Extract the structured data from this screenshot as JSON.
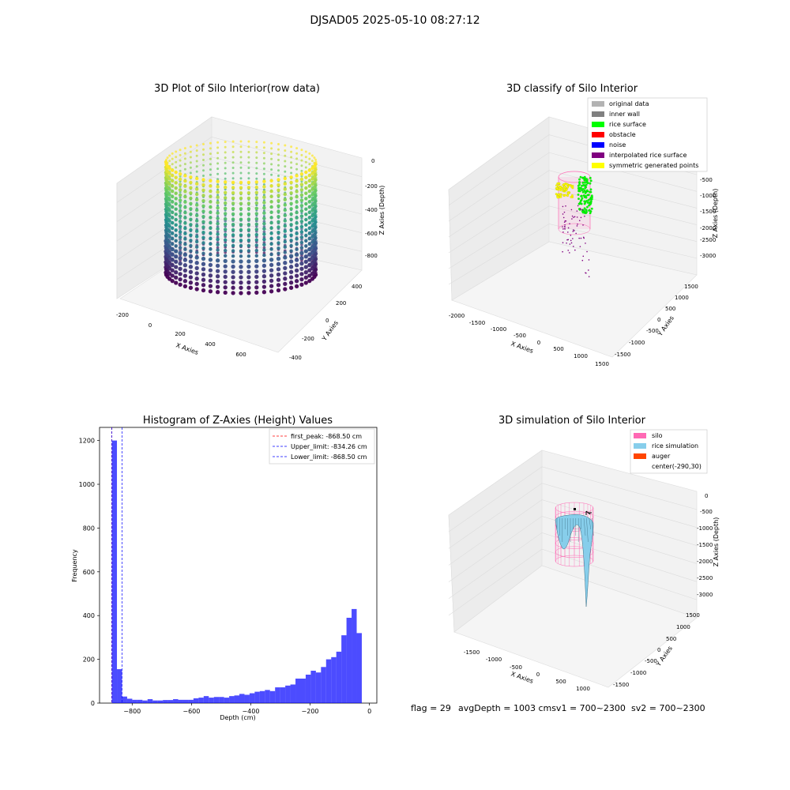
{
  "figure": {
    "suptitle": "DJSAD05 2025-05-10 08:27:12",
    "footer": {
      "flag": "flag = 29",
      "avg": "avgDepth = 1003 cmsv1 = 700~2300",
      "sv2": "sv2 = 700~2300"
    }
  },
  "colors": {
    "original": "#b3b3b3",
    "inner_wall": "#808080",
    "rice_surface": "#00ff00",
    "obstacle": "#ff0000",
    "noise": "#0000ff",
    "interpolated": "#800080",
    "symmetric": "#ffff00",
    "silo": "#ff69b4",
    "rice_sim": "#87ceeb",
    "auger": "#ff4500",
    "hist_bar": "#0000ff"
  },
  "chart_data": [
    {
      "id": "raw",
      "type": "scatter3d",
      "title": "3D Plot of Silo Interior(row data)",
      "xlabel": "X Axies",
      "ylabel": "Y Axies",
      "zlabel": "Z Axies (Depth)",
      "xticks": [
        "-200",
        "0",
        "200",
        "400",
        "600"
      ],
      "yticks": [
        "-400",
        "-200",
        "0",
        "200",
        "400"
      ],
      "zticks": [
        "0",
        "-200",
        "-400",
        "-600",
        "-800"
      ],
      "xlim": [
        -220,
        720
      ],
      "ylim": [
        -420,
        420
      ],
      "zlim": [
        -900,
        0
      ]
    },
    {
      "id": "classify",
      "type": "scatter3d",
      "title": "3D classify of Silo Interior",
      "xlabel": "X Axies",
      "ylabel": "Y Axies",
      "zlabel": "Z Axies (Depth)",
      "xticks": [
        "-2000",
        "-1500",
        "-1000",
        "-500",
        "0",
        "500",
        "1000",
        "1500"
      ],
      "yticks": [
        "-1500",
        "-1000",
        "-500",
        "0",
        "500",
        "1000",
        "1500"
      ],
      "zticks": [
        "-500",
        "-1000",
        "-1500",
        "-2000",
        "-2500",
        "-3000"
      ],
      "xlim": [
        -2000,
        1500
      ],
      "ylim": [
        -1500,
        1500
      ],
      "zlim": [
        -3200,
        0
      ],
      "legend_position": "upper-right",
      "legend": [
        {
          "label": "original data",
          "color": "#b3b3b3"
        },
        {
          "label": "inner wall",
          "color": "#808080"
        },
        {
          "label": "rice surface",
          "color": "#00ff00"
        },
        {
          "label": "obstacle",
          "color": "#ff0000"
        },
        {
          "label": "noise",
          "color": "#0000ff"
        },
        {
          "label": "interpolated rice surface",
          "color": "#800080"
        },
        {
          "label": "symmetric generated points",
          "color": "#ffff00"
        }
      ]
    },
    {
      "id": "hist",
      "type": "bar",
      "title": "Histogram of Z-Axies (Height) Values",
      "xlabel": "Depth (cm)",
      "ylabel": "Frequency",
      "xlim": [
        -910,
        25
      ],
      "ylim": [
        0,
        1260
      ],
      "xticks": [
        -800,
        -600,
        -400,
        -200,
        0
      ],
      "yticks": [
        0,
        200,
        400,
        600,
        800,
        1000,
        1200
      ],
      "bin_start": -868.5,
      "bin_width": 17.2,
      "counts": [
        1200,
        155,
        30,
        20,
        15,
        15,
        12,
        18,
        12,
        12,
        14,
        14,
        18,
        15,
        15,
        15,
        22,
        25,
        32,
        25,
        28,
        28,
        25,
        32,
        35,
        42,
        38,
        45,
        52,
        55,
        60,
        55,
        72,
        72,
        80,
        85,
        112,
        112,
        130,
        148,
        140,
        165,
        200,
        210,
        235,
        310,
        390,
        430,
        320
      ],
      "lines": [
        {
          "label": "first_peak: -868.50 cm",
          "value": -868.5,
          "color": "#ff0000"
        },
        {
          "label": "Upper_limit: -834.26 cm",
          "value": -834.26,
          "color": "#0000ff"
        },
        {
          "label": "Lower_limit: -868.50 cm",
          "value": -868.5,
          "color": "#0000ff"
        }
      ],
      "legend_position": "upper-right"
    },
    {
      "id": "sim",
      "type": "surface3d",
      "title": "3D simulation of Silo Interior",
      "xlabel": "X Axies",
      "ylabel": "Y Axies",
      "zlabel": "Z Axies (Depth)",
      "xticks": [
        "-1500",
        "-1000",
        "-500",
        "0",
        "500",
        "1000"
      ],
      "yticks": [
        "-1500",
        "-1000",
        "-500",
        "0",
        "500",
        "1000",
        "1500"
      ],
      "zticks": [
        "0",
        "-500",
        "-1000",
        "-1500",
        "-2000",
        "-2500",
        "-3000"
      ],
      "legend_position": "upper-right",
      "legend": [
        {
          "label": "silo",
          "color": "#ff69b4"
        },
        {
          "label": "rice simulation",
          "color": "#87ceeb"
        },
        {
          "label": "auger",
          "color": "#ff4500"
        },
        {
          "label": "center(-290,30)",
          "color": ""
        }
      ]
    }
  ]
}
